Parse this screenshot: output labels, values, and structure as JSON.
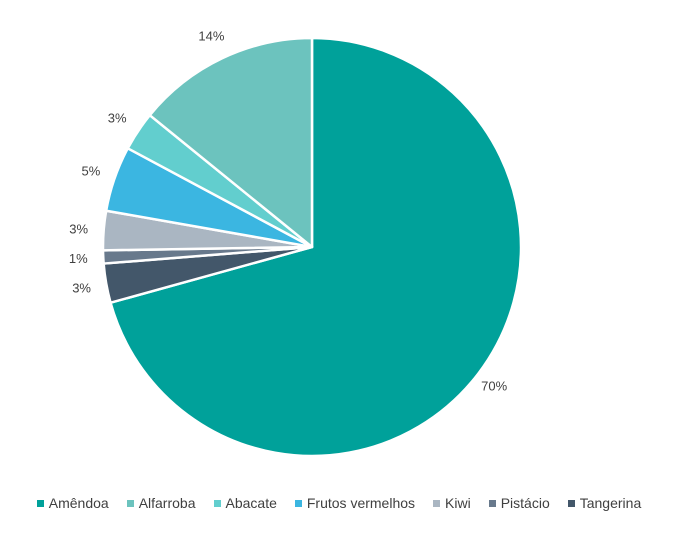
{
  "chart_data": {
    "type": "pie",
    "title": "",
    "categories": [
      "Amêndoa",
      "Alfarroba",
      "Abacate",
      "Frutos vermelhos",
      "Kiwi",
      "Pistácio",
      "Tangerina"
    ],
    "values": [
      70,
      14,
      3,
      5,
      3,
      1,
      3
    ],
    "data_labels": [
      "70%",
      "14%",
      "3%",
      "5%",
      "3%",
      "1%",
      "3%"
    ],
    "colors": [
      "#00A19A",
      "#6CC3BE",
      "#62CECE",
      "#3BB6E1",
      "#AAB6C2",
      "#68798C",
      "#43576A"
    ],
    "legend_position": "bottom"
  }
}
